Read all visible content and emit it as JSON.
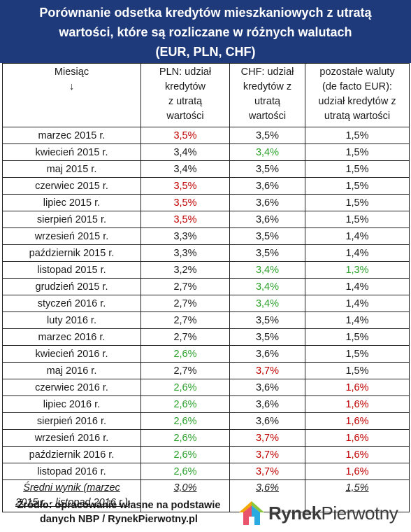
{
  "header": {
    "title_line1": "Porównanie odsetka kredytów mieszkaniowych z utratą",
    "title_line2": "wartości, które są rozliczane w różnych walutach",
    "title_line3": "(EUR, PLN, CHF)"
  },
  "columns": {
    "month": [
      "Miesiąc",
      "↓"
    ],
    "pln": [
      "PLN: udział",
      "kredytów",
      "z utratą",
      "wartości"
    ],
    "chf": [
      "CHF: udział",
      "kredytów z",
      "utratą",
      "wartości"
    ],
    "other": [
      "pozostałe waluty",
      "(de facto EUR):",
      "udział kredytów z",
      "utratą wartości"
    ]
  },
  "colors": {
    "red": "#c00000",
    "green": "#2aa02a",
    "header_bg": "#1f3a7a"
  },
  "rows": [
    {
      "month": "marzec 2015 r.",
      "pln": "3,5%",
      "pln_c": "red",
      "chf": "3,5%",
      "chf_c": "",
      "other": "1,5%",
      "other_c": ""
    },
    {
      "month": "kwiecień 2015 r.",
      "pln": "3,4%",
      "pln_c": "",
      "chf": "3,4%",
      "chf_c": "green",
      "other": "1,5%",
      "other_c": ""
    },
    {
      "month": "maj 2015 r.",
      "pln": "3,4%",
      "pln_c": "",
      "chf": "3,5%",
      "chf_c": "",
      "other": "1,5%",
      "other_c": ""
    },
    {
      "month": "czerwiec 2015 r.",
      "pln": "3,5%",
      "pln_c": "red",
      "chf": "3,6%",
      "chf_c": "",
      "other": "1,5%",
      "other_c": ""
    },
    {
      "month": "lipiec 2015 r.",
      "pln": "3,5%",
      "pln_c": "red",
      "chf": "3,6%",
      "chf_c": "",
      "other": "1,5%",
      "other_c": ""
    },
    {
      "month": "sierpień 2015 r.",
      "pln": "3,5%",
      "pln_c": "red",
      "chf": "3,6%",
      "chf_c": "",
      "other": "1,5%",
      "other_c": ""
    },
    {
      "month": "wrzesień 2015 r.",
      "pln": "3,3%",
      "pln_c": "",
      "chf": "3,5%",
      "chf_c": "",
      "other": "1,4%",
      "other_c": ""
    },
    {
      "month": "październik 2015 r.",
      "pln": "3,3%",
      "pln_c": "",
      "chf": "3,5%",
      "chf_c": "",
      "other": "1,4%",
      "other_c": ""
    },
    {
      "month": "listopad 2015 r.",
      "pln": "3,2%",
      "pln_c": "",
      "chf": "3,4%",
      "chf_c": "green",
      "other": "1,3%",
      "other_c": "green"
    },
    {
      "month": "grudzień 2015 r.",
      "pln": "2,7%",
      "pln_c": "",
      "chf": "3,4%",
      "chf_c": "green",
      "other": "1,4%",
      "other_c": ""
    },
    {
      "month": "styczeń 2016 r.",
      "pln": "2,7%",
      "pln_c": "",
      "chf": "3,4%",
      "chf_c": "green",
      "other": "1,4%",
      "other_c": ""
    },
    {
      "month": "luty 2016 r.",
      "pln": "2,7%",
      "pln_c": "",
      "chf": "3,5%",
      "chf_c": "",
      "other": "1,4%",
      "other_c": ""
    },
    {
      "month": "marzec 2016 r.",
      "pln": "2,7%",
      "pln_c": "",
      "chf": "3,5%",
      "chf_c": "",
      "other": "1,5%",
      "other_c": ""
    },
    {
      "month": "kwiecień 2016 r.",
      "pln": "2,6%",
      "pln_c": "green",
      "chf": "3,6%",
      "chf_c": "",
      "other": "1,5%",
      "other_c": ""
    },
    {
      "month": "maj 2016 r.",
      "pln": "2,7%",
      "pln_c": "",
      "chf": "3,7%",
      "chf_c": "red",
      "other": "1,5%",
      "other_c": ""
    },
    {
      "month": "czerwiec 2016 r.",
      "pln": "2,6%",
      "pln_c": "green",
      "chf": "3,6%",
      "chf_c": "",
      "other": "1,6%",
      "other_c": "red"
    },
    {
      "month": "lipiec 2016 r.",
      "pln": "2,6%",
      "pln_c": "green",
      "chf": "3,6%",
      "chf_c": "",
      "other": "1,6%",
      "other_c": "red"
    },
    {
      "month": "sierpień 2016 r.",
      "pln": "2,6%",
      "pln_c": "green",
      "chf": "3,6%",
      "chf_c": "",
      "other": "1,6%",
      "other_c": "red"
    },
    {
      "month": "wrzesień 2016 r.",
      "pln": "2,6%",
      "pln_c": "green",
      "chf": "3,7%",
      "chf_c": "red",
      "other": "1,6%",
      "other_c": "red"
    },
    {
      "month": "październik 2016 r.",
      "pln": "2,6%",
      "pln_c": "green",
      "chf": "3,7%",
      "chf_c": "red",
      "other": "1,6%",
      "other_c": "red"
    },
    {
      "month": "listopad 2016 r.",
      "pln": "2,6%",
      "pln_c": "green",
      "chf": "3,7%",
      "chf_c": "red",
      "other": "1,6%",
      "other_c": "red"
    }
  ],
  "average": {
    "label_line1": "Średni wynik (marzec",
    "label_line2": "2015 r. - listopad 2016 r.)",
    "pln": "3,0%",
    "chf": "3,6%",
    "other": "1,5%"
  },
  "footer": {
    "source_line1": "Źródło: opracowanie własne na podstawie",
    "source_line2": "danych NBP / RynekPierwotny.pl",
    "logo_part1": "Rynek",
    "logo_part2": "Pierwotny",
    "logo_icon": "house-logo-icon"
  }
}
